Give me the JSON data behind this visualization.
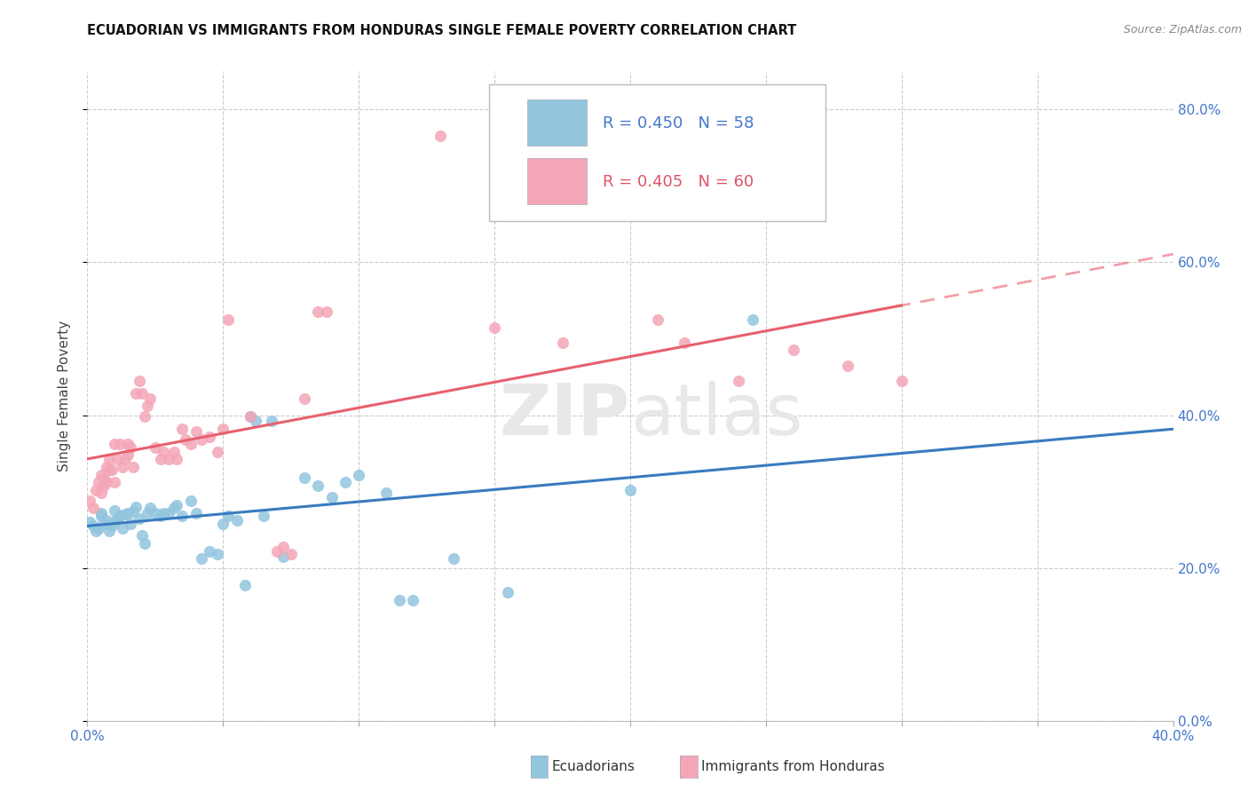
{
  "title": "ECUADORIAN VS IMMIGRANTS FROM HONDURAS SINGLE FEMALE POVERTY CORRELATION CHART",
  "source": "Source: ZipAtlas.com",
  "ylabel": "Single Female Poverty",
  "legend_label1": "Ecuadorians",
  "legend_label2": "Immigrants from Honduras",
  "r1": 0.45,
  "n1": 58,
  "r2": 0.405,
  "n2": 60,
  "color_blue": "#92c5de",
  "color_pink": "#f4a6b8",
  "color_blue_line": "#3a7bbf",
  "color_pink_line": "#e8606e",
  "color_blue_text": "#4477cc",
  "color_pink_text": "#dd5566",
  "blue_scatter": [
    [
      0.001,
      0.26
    ],
    [
      0.002,
      0.255
    ],
    [
      0.003,
      0.248
    ],
    [
      0.004,
      0.252
    ],
    [
      0.005,
      0.268
    ],
    [
      0.005,
      0.272
    ],
    [
      0.006,
      0.258
    ],
    [
      0.007,
      0.262
    ],
    [
      0.008,
      0.248
    ],
    [
      0.009,
      0.255
    ],
    [
      0.01,
      0.275
    ],
    [
      0.01,
      0.26
    ],
    [
      0.011,
      0.265
    ],
    [
      0.012,
      0.268
    ],
    [
      0.013,
      0.252
    ],
    [
      0.014,
      0.27
    ],
    [
      0.015,
      0.272
    ],
    [
      0.016,
      0.258
    ],
    [
      0.017,
      0.274
    ],
    [
      0.018,
      0.28
    ],
    [
      0.019,
      0.265
    ],
    [
      0.02,
      0.242
    ],
    [
      0.021,
      0.232
    ],
    [
      0.022,
      0.272
    ],
    [
      0.023,
      0.278
    ],
    [
      0.025,
      0.272
    ],
    [
      0.027,
      0.268
    ],
    [
      0.028,
      0.272
    ],
    [
      0.03,
      0.272
    ],
    [
      0.032,
      0.278
    ],
    [
      0.033,
      0.282
    ],
    [
      0.035,
      0.268
    ],
    [
      0.038,
      0.288
    ],
    [
      0.04,
      0.272
    ],
    [
      0.042,
      0.212
    ],
    [
      0.045,
      0.222
    ],
    [
      0.048,
      0.218
    ],
    [
      0.05,
      0.258
    ],
    [
      0.052,
      0.268
    ],
    [
      0.055,
      0.262
    ],
    [
      0.058,
      0.178
    ],
    [
      0.06,
      0.398
    ],
    [
      0.062,
      0.392
    ],
    [
      0.065,
      0.268
    ],
    [
      0.068,
      0.392
    ],
    [
      0.072,
      0.215
    ],
    [
      0.08,
      0.318
    ],
    [
      0.085,
      0.308
    ],
    [
      0.09,
      0.292
    ],
    [
      0.095,
      0.312
    ],
    [
      0.1,
      0.322
    ],
    [
      0.11,
      0.298
    ],
    [
      0.115,
      0.158
    ],
    [
      0.12,
      0.158
    ],
    [
      0.135,
      0.212
    ],
    [
      0.155,
      0.168
    ],
    [
      0.2,
      0.302
    ],
    [
      0.245,
      0.525
    ]
  ],
  "pink_scatter": [
    [
      0.001,
      0.288
    ],
    [
      0.002,
      0.278
    ],
    [
      0.003,
      0.302
    ],
    [
      0.004,
      0.312
    ],
    [
      0.005,
      0.322
    ],
    [
      0.005,
      0.298
    ],
    [
      0.006,
      0.318
    ],
    [
      0.006,
      0.308
    ],
    [
      0.007,
      0.332
    ],
    [
      0.007,
      0.312
    ],
    [
      0.008,
      0.342
    ],
    [
      0.008,
      0.328
    ],
    [
      0.009,
      0.328
    ],
    [
      0.01,
      0.312
    ],
    [
      0.01,
      0.362
    ],
    [
      0.011,
      0.342
    ],
    [
      0.012,
      0.362
    ],
    [
      0.013,
      0.332
    ],
    [
      0.014,
      0.342
    ],
    [
      0.015,
      0.362
    ],
    [
      0.015,
      0.348
    ],
    [
      0.016,
      0.358
    ],
    [
      0.017,
      0.332
    ],
    [
      0.018,
      0.428
    ],
    [
      0.019,
      0.445
    ],
    [
      0.02,
      0.428
    ],
    [
      0.021,
      0.398
    ],
    [
      0.022,
      0.412
    ],
    [
      0.023,
      0.422
    ],
    [
      0.025,
      0.358
    ],
    [
      0.027,
      0.342
    ],
    [
      0.028,
      0.352
    ],
    [
      0.03,
      0.342
    ],
    [
      0.032,
      0.352
    ],
    [
      0.033,
      0.342
    ],
    [
      0.035,
      0.382
    ],
    [
      0.036,
      0.368
    ],
    [
      0.038,
      0.362
    ],
    [
      0.04,
      0.378
    ],
    [
      0.042,
      0.368
    ],
    [
      0.045,
      0.372
    ],
    [
      0.048,
      0.352
    ],
    [
      0.05,
      0.382
    ],
    [
      0.052,
      0.525
    ],
    [
      0.06,
      0.398
    ],
    [
      0.07,
      0.222
    ],
    [
      0.072,
      0.228
    ],
    [
      0.075,
      0.218
    ],
    [
      0.08,
      0.422
    ],
    [
      0.085,
      0.535
    ],
    [
      0.088,
      0.535
    ],
    [
      0.13,
      0.765
    ],
    [
      0.15,
      0.515
    ],
    [
      0.175,
      0.495
    ],
    [
      0.21,
      0.525
    ],
    [
      0.22,
      0.495
    ],
    [
      0.24,
      0.445
    ],
    [
      0.26,
      0.485
    ],
    [
      0.28,
      0.465
    ],
    [
      0.3,
      0.445
    ]
  ],
  "xlim": [
    0.0,
    0.4
  ],
  "ylim": [
    0.0,
    0.85
  ],
  "yticks": [
    0.0,
    0.2,
    0.4,
    0.6,
    0.8
  ],
  "ytick_labels": [
    "0.0%",
    "20.0%",
    "40.0%",
    "60.0%",
    "80.0%"
  ],
  "xtick_positions": [
    0.0,
    0.05,
    0.1,
    0.15,
    0.2,
    0.25,
    0.3,
    0.35,
    0.4
  ],
  "background_color": "#ffffff",
  "grid_color": "#cccccc",
  "blue_line_xrange": [
    0.0,
    0.4
  ],
  "pink_solid_xrange": [
    0.0,
    0.3
  ],
  "pink_dash_xrange": [
    0.28,
    0.4
  ]
}
